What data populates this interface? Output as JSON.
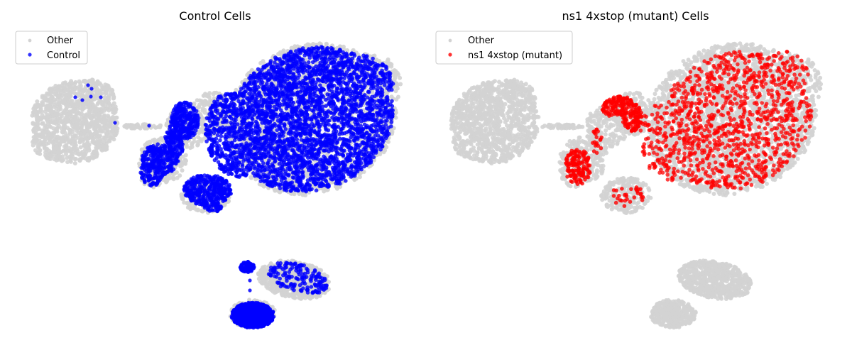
{
  "chart_data": [
    {
      "type": "scatter",
      "title": "Control Cells",
      "xlabel": "",
      "ylabel": "",
      "axes_visible": false,
      "legend": {
        "position": "top-left",
        "entries": [
          {
            "label": "Other",
            "color": "#d3d3d3"
          },
          {
            "label": "Control",
            "color": "#0000ff"
          }
        ]
      },
      "series": [
        {
          "name": "Other",
          "color": "#d3d3d3",
          "role": "background",
          "regions": [
            "left_island",
            "main_body",
            "bottom_right_blob",
            "bottom_small_blob"
          ]
        },
        {
          "name": "Control",
          "color": "#0000ff",
          "role": "highlight",
          "regions": [
            "main_body_dense",
            "middle_left_loop",
            "bottom_small_blob_dense",
            "bottom_right_blob_sparse",
            "left_island_few"
          ]
        }
      ]
    },
    {
      "type": "scatter",
      "title": "ns1 4xstop (mutant) Cells",
      "xlabel": "",
      "ylabel": "",
      "axes_visible": false,
      "legend": {
        "position": "top-left",
        "entries": [
          {
            "label": "Other",
            "color": "#d3d3d3"
          },
          {
            "label": "ns1 4xstop (mutant)",
            "color": "#ff0000"
          }
        ]
      },
      "series": [
        {
          "name": "Other",
          "color": "#d3d3d3",
          "role": "background",
          "regions": [
            "left_island",
            "main_body",
            "bottom_right_blob",
            "bottom_small_blob"
          ]
        },
        {
          "name": "ns1 4xstop (mutant)",
          "color": "#ff0000",
          "role": "highlight",
          "regions": [
            "main_body_sparse",
            "left_cluster_dense",
            "middle_left_loop_partial"
          ]
        }
      ]
    }
  ]
}
